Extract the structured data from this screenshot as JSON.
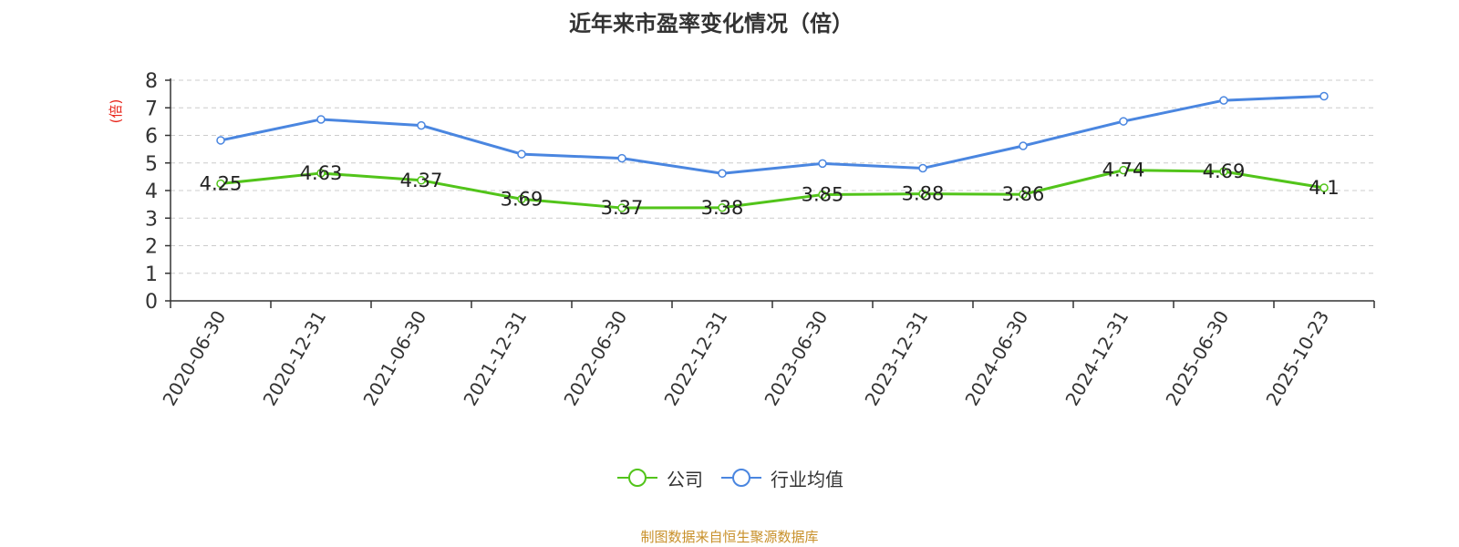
{
  "chart_data": {
    "type": "line",
    "title": "近年来市盈率变化情况（倍）",
    "ylabel": "(倍)",
    "ylim": [
      0,
      8
    ],
    "yticks": [
      "0",
      "1",
      "2",
      "3",
      "4",
      "5",
      "6",
      "7",
      "8"
    ],
    "categories": [
      "2020-06-30",
      "2020-12-31",
      "2021-06-30",
      "2021-12-31",
      "2022-06-30",
      "2022-12-31",
      "2023-06-30",
      "2023-12-31",
      "2024-06-30",
      "2024-12-31",
      "2025-06-30",
      "2025-10-23"
    ],
    "grid": true,
    "legend_position": "bottom",
    "series": [
      {
        "name": "公司",
        "color": "#52c41a",
        "values": [
          4.25,
          4.63,
          4.37,
          3.69,
          3.37,
          3.38,
          3.85,
          3.88,
          3.86,
          4.74,
          4.69,
          4.1
        ],
        "value_labels": [
          "4.25",
          "4.63",
          "4.37",
          "3.69",
          "3.37",
          "3.38",
          "3.85",
          "3.88",
          "3.86",
          "4.74",
          "4.69",
          "4.1"
        ]
      },
      {
        "name": "行业均值",
        "color": "#4a86e0",
        "values": [
          5.82,
          6.58,
          6.36,
          5.32,
          5.17,
          4.62,
          4.98,
          4.81,
          5.62,
          6.51,
          7.27,
          7.42
        ]
      }
    ]
  },
  "colors": {
    "ylabel": "#e8251b",
    "source": "#c8902a",
    "grid": "#cccccc",
    "axis": "#333333"
  },
  "footer": {
    "source": "制图数据来自恒生聚源数据库"
  }
}
